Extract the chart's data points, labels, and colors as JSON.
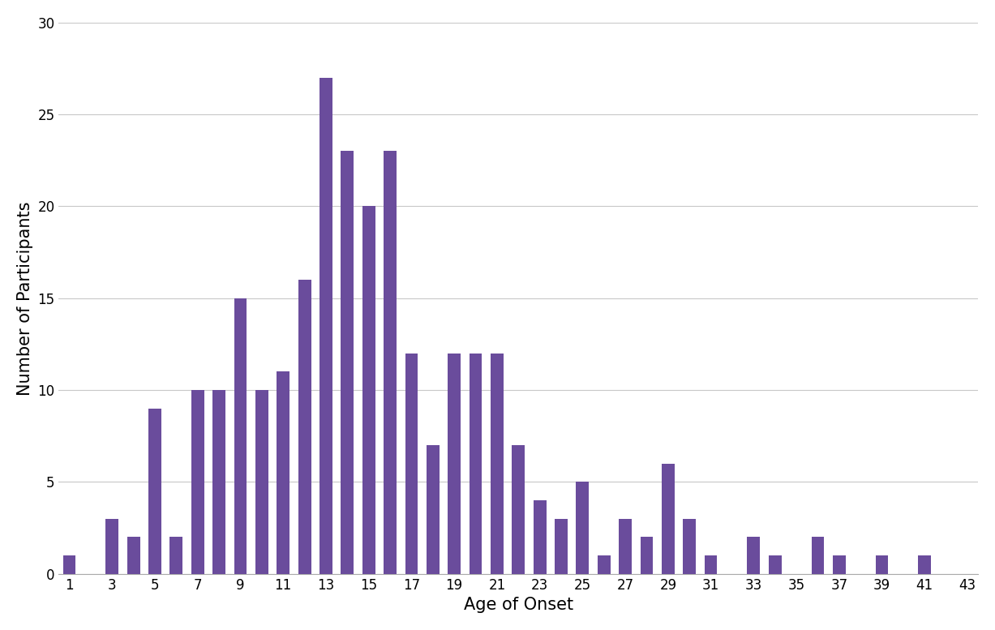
{
  "ages": [
    1,
    2,
    3,
    4,
    5,
    6,
    7,
    8,
    9,
    10,
    11,
    12,
    13,
    14,
    15,
    16,
    17,
    18,
    19,
    20,
    21,
    22,
    23,
    24,
    25,
    26,
    27,
    28,
    29,
    30,
    31,
    32,
    33,
    34,
    35,
    36,
    37,
    38,
    39,
    40,
    41
  ],
  "counts": [
    1,
    0,
    3,
    2,
    9,
    2,
    10,
    10,
    15,
    10,
    11,
    16,
    27,
    23,
    20,
    23,
    12,
    7,
    12,
    12,
    12,
    7,
    4,
    3,
    5,
    1,
    3,
    2,
    6,
    3,
    1,
    0,
    2,
    1,
    0,
    2,
    1,
    0,
    1,
    0,
    1
  ],
  "bar_color": "#6a4c9c",
  "xlabel": "Age of Onset",
  "ylabel": "Number of Participants",
  "ylim": [
    0,
    30
  ],
  "yticks": [
    0,
    5,
    10,
    15,
    20,
    25,
    30
  ],
  "xtick_positions": [
    1,
    3,
    5,
    7,
    9,
    11,
    13,
    15,
    17,
    19,
    21,
    23,
    25,
    27,
    29,
    31,
    33,
    35,
    37,
    39,
    41,
    43
  ],
  "xtick_labels": [
    "1",
    "3",
    "5",
    "7",
    "9",
    "11",
    "13",
    "15",
    "17",
    "19",
    "21",
    "23",
    "25",
    "27",
    "29",
    "31",
    "33",
    "35",
    "37",
    "39",
    "41",
    "43"
  ],
  "background_color": "#ffffff",
  "grid_color": "#c8c8c8",
  "xlabel_fontsize": 15,
  "ylabel_fontsize": 15,
  "tick_fontsize": 12,
  "bar_width": 0.6
}
